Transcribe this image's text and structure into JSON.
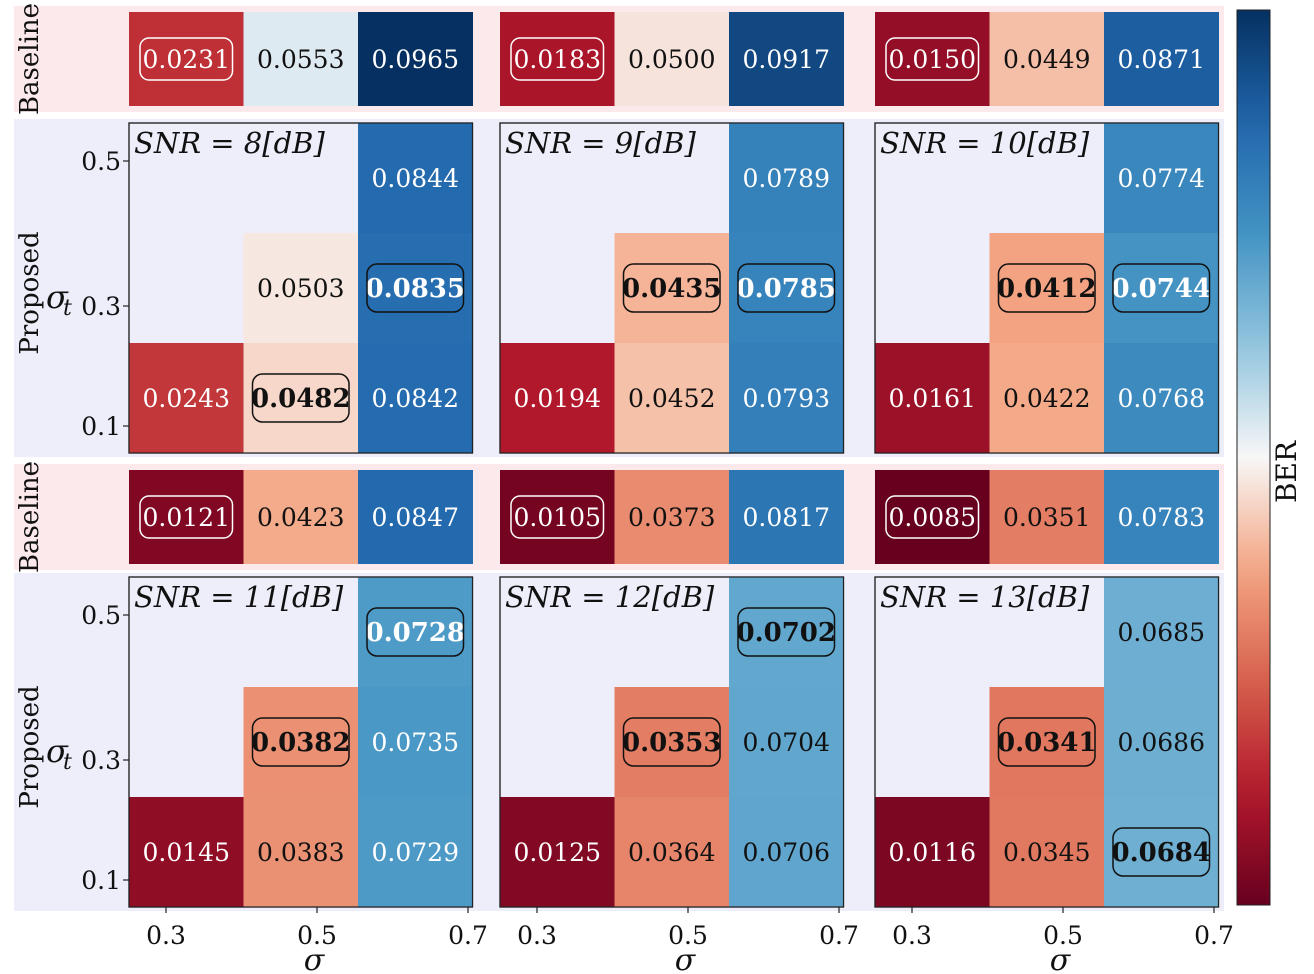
{
  "chart_data": {
    "type": "heatmap",
    "colorbar_label": "BER",
    "colormap": "RdBu (reversed)",
    "color_range": [
      0.0085,
      0.0965
    ],
    "x_values": [
      0.3,
      0.5,
      0.7
    ],
    "x_tick_labels": [
      "0.3",
      "0.5",
      "0.7"
    ],
    "x_label": "σ",
    "y_values": [
      0.1,
      0.3,
      0.5
    ],
    "y_tick_labels": [
      "0.1",
      "0.3",
      "0.5"
    ],
    "y_label": "σ_t",
    "baseline_label": "Baseline",
    "proposed_label": "Proposed",
    "panels": [
      {
        "snr_label": "SNR = 8[dB]",
        "baseline": [
          "0.0231",
          "0.0553",
          "0.0965"
        ],
        "baseline_best": 0,
        "proposed": [
          {
            "x": 0.7,
            "y": 0.5,
            "value": "0.0844",
            "boxed": false
          },
          {
            "x": 0.5,
            "y": 0.3,
            "value": "0.0503",
            "boxed": false
          },
          {
            "x": 0.7,
            "y": 0.3,
            "value": "0.0835",
            "boxed": true
          },
          {
            "x": 0.3,
            "y": 0.1,
            "value": "0.0243",
            "boxed": false
          },
          {
            "x": 0.5,
            "y": 0.1,
            "value": "0.0482",
            "boxed": true
          },
          {
            "x": 0.7,
            "y": 0.1,
            "value": "0.0842",
            "boxed": false
          }
        ]
      },
      {
        "snr_label": "SNR = 9[dB]",
        "baseline": [
          "0.0183",
          "0.0500",
          "0.0917"
        ],
        "baseline_best": 0,
        "proposed": [
          {
            "x": 0.7,
            "y": 0.5,
            "value": "0.0789",
            "boxed": false
          },
          {
            "x": 0.5,
            "y": 0.3,
            "value": "0.0435",
            "boxed": true
          },
          {
            "x": 0.7,
            "y": 0.3,
            "value": "0.0785",
            "boxed": true
          },
          {
            "x": 0.3,
            "y": 0.1,
            "value": "0.0194",
            "boxed": false
          },
          {
            "x": 0.5,
            "y": 0.1,
            "value": "0.0452",
            "boxed": false
          },
          {
            "x": 0.7,
            "y": 0.1,
            "value": "0.0793",
            "boxed": false
          }
        ]
      },
      {
        "snr_label": "SNR = 10[dB]",
        "baseline": [
          "0.0150",
          "0.0449",
          "0.0871"
        ],
        "baseline_best": 0,
        "proposed": [
          {
            "x": 0.7,
            "y": 0.5,
            "value": "0.0774",
            "boxed": false
          },
          {
            "x": 0.5,
            "y": 0.3,
            "value": "0.0412",
            "boxed": true
          },
          {
            "x": 0.7,
            "y": 0.3,
            "value": "0.0744",
            "boxed": true
          },
          {
            "x": 0.3,
            "y": 0.1,
            "value": "0.0161",
            "boxed": false
          },
          {
            "x": 0.5,
            "y": 0.1,
            "value": "0.0422",
            "boxed": false
          },
          {
            "x": 0.7,
            "y": 0.1,
            "value": "0.0768",
            "boxed": false
          }
        ]
      },
      {
        "snr_label": "SNR = 11[dB]",
        "baseline": [
          "0.0121",
          "0.0423",
          "0.0847"
        ],
        "baseline_best": 0,
        "proposed": [
          {
            "x": 0.7,
            "y": 0.5,
            "value": "0.0728",
            "boxed": true
          },
          {
            "x": 0.5,
            "y": 0.3,
            "value": "0.0382",
            "boxed": true
          },
          {
            "x": 0.7,
            "y": 0.3,
            "value": "0.0735",
            "boxed": false
          },
          {
            "x": 0.3,
            "y": 0.1,
            "value": "0.0145",
            "boxed": false
          },
          {
            "x": 0.5,
            "y": 0.1,
            "value": "0.0383",
            "boxed": false
          },
          {
            "x": 0.7,
            "y": 0.1,
            "value": "0.0729",
            "boxed": false
          }
        ]
      },
      {
        "snr_label": "SNR = 12[dB]",
        "baseline": [
          "0.0105",
          "0.0373",
          "0.0817"
        ],
        "baseline_best": 0,
        "proposed": [
          {
            "x": 0.7,
            "y": 0.5,
            "value": "0.0702",
            "boxed": true
          },
          {
            "x": 0.5,
            "y": 0.3,
            "value": "0.0353",
            "boxed": true
          },
          {
            "x": 0.7,
            "y": 0.3,
            "value": "0.0704",
            "boxed": false
          },
          {
            "x": 0.3,
            "y": 0.1,
            "value": "0.0125",
            "boxed": false
          },
          {
            "x": 0.5,
            "y": 0.1,
            "value": "0.0364",
            "boxed": false
          },
          {
            "x": 0.7,
            "y": 0.1,
            "value": "0.0706",
            "boxed": false
          }
        ]
      },
      {
        "snr_label": "SNR = 13[dB]",
        "baseline": [
          "0.0085",
          "0.0351",
          "0.0783"
        ],
        "baseline_best": 0,
        "proposed": [
          {
            "x": 0.7,
            "y": 0.5,
            "value": "0.0685",
            "boxed": false
          },
          {
            "x": 0.5,
            "y": 0.3,
            "value": "0.0341",
            "boxed": true
          },
          {
            "x": 0.7,
            "y": 0.3,
            "value": "0.0686",
            "boxed": false
          },
          {
            "x": 0.3,
            "y": 0.1,
            "value": "0.0116",
            "boxed": false
          },
          {
            "x": 0.5,
            "y": 0.1,
            "value": "0.0345",
            "boxed": false
          },
          {
            "x": 0.7,
            "y": 0.1,
            "value": "0.0684",
            "boxed": true
          }
        ]
      }
    ]
  },
  "colors": {
    "baseline_band": "#fbe9eb",
    "proposed_band": "#eeeefb"
  }
}
